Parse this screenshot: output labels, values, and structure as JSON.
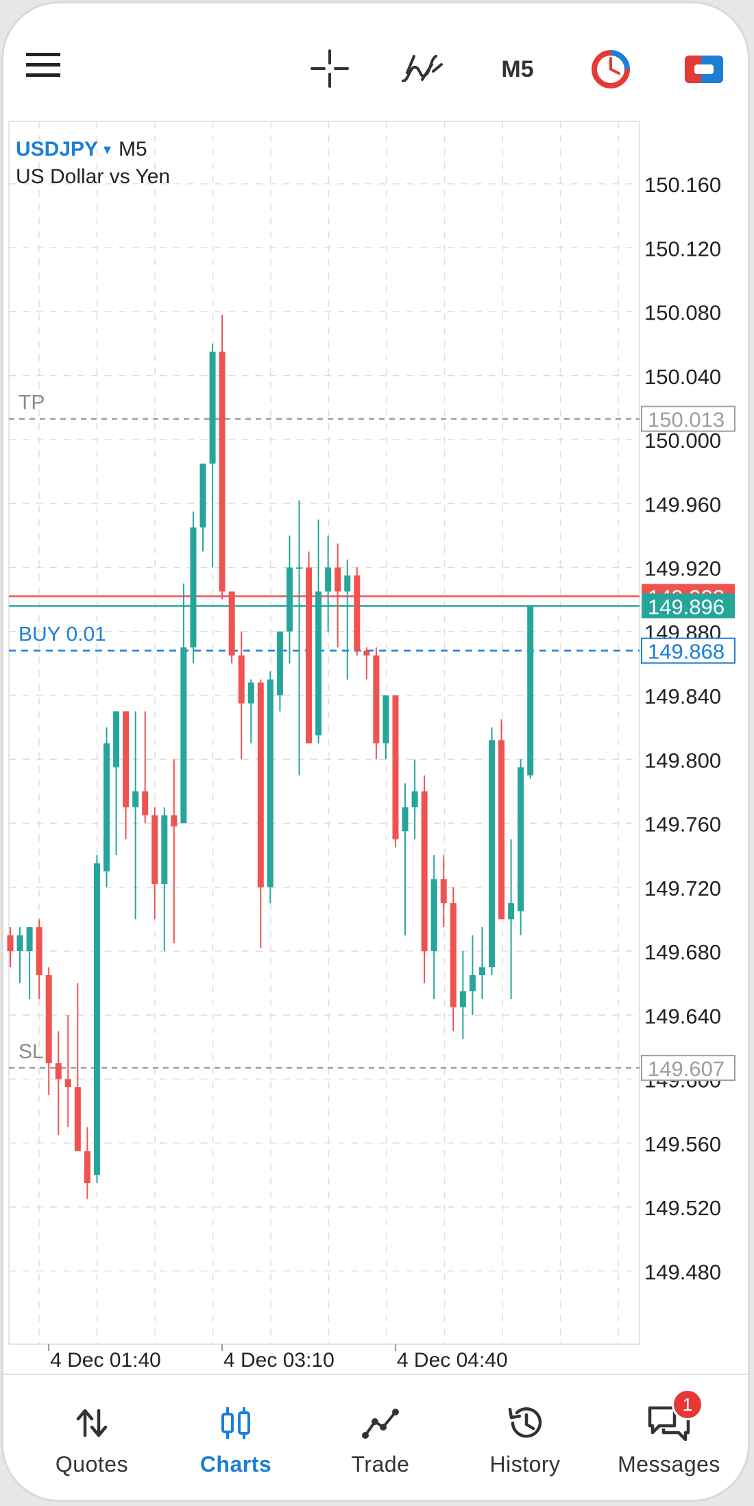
{
  "toolbar": {
    "timeframe_label": "M5"
  },
  "chart": {
    "symbol": "USDJPY",
    "symbol_dropdown_glyph": "▾",
    "timeframe": "M5",
    "description": "US Dollar vs Yen",
    "price_levels": [
      {
        "label": "150.160",
        "price": 150.16
      },
      {
        "label": "150.120",
        "price": 150.12
      },
      {
        "label": "150.080",
        "price": 150.08
      },
      {
        "label": "150.040",
        "price": 150.04
      },
      {
        "label": "150.000",
        "price": 150.0
      },
      {
        "label": "149.960",
        "price": 149.96
      },
      {
        "label": "149.920",
        "price": 149.92
      },
      {
        "label": "149.880",
        "price": 149.88
      },
      {
        "label": "149.840",
        "price": 149.84
      },
      {
        "label": "149.800",
        "price": 149.8
      },
      {
        "label": "149.760",
        "price": 149.76
      },
      {
        "label": "149.720",
        "price": 149.72
      },
      {
        "label": "149.680",
        "price": 149.68
      },
      {
        "label": "149.640",
        "price": 149.64
      },
      {
        "label": "149.600",
        "price": 149.6
      },
      {
        "label": "149.560",
        "price": 149.56
      },
      {
        "label": "149.520",
        "price": 149.52
      },
      {
        "label": "149.480",
        "price": 149.48
      }
    ],
    "time_labels": [
      {
        "label": "4 Dec 01:40",
        "bar_index": 2
      },
      {
        "label": "4 Dec 03:10",
        "bar_index": 20
      },
      {
        "label": "4 Dec 04:40",
        "bar_index": 38
      }
    ],
    "tp_line": {
      "label": "TP",
      "price": 150.013,
      "price_label": "150.013"
    },
    "sl_line": {
      "label": "SL",
      "price": 149.607,
      "price_label": "149.607"
    },
    "position_line": {
      "label": "BUY 0.01",
      "price": 149.868,
      "price_label": "149.868"
    },
    "bid_line": {
      "price": 149.896,
      "price_label": "149.896"
    },
    "ask_line": {
      "price": 149.902,
      "price_label": "149.902"
    },
    "colors": {
      "bull": "#26a69a",
      "bear": "#ef5350",
      "grid": "#dddddd",
      "position": "#1c7ed6",
      "tp_sl": "#9e9e9e",
      "accent": "#1c7ed6"
    }
  },
  "chart_data": {
    "type": "candlestick",
    "symbol": "USDJPY",
    "timeframe": "M5",
    "y_axis_range": [
      149.44,
      150.18
    ],
    "bars": [
      {
        "o": 149.69,
        "h": 149.695,
        "l": 149.67,
        "c": 149.68
      },
      {
        "o": 149.68,
        "h": 149.695,
        "l": 149.66,
        "c": 149.69
      },
      {
        "o": 149.68,
        "h": 149.695,
        "l": 149.65,
        "c": 149.695
      },
      {
        "o": 149.695,
        "h": 149.7,
        "l": 149.65,
        "c": 149.665
      },
      {
        "o": 149.665,
        "h": 149.67,
        "l": 149.59,
        "c": 149.61
      },
      {
        "o": 149.61,
        "h": 149.63,
        "l": 149.565,
        "c": 149.6
      },
      {
        "o": 149.6,
        "h": 149.64,
        "l": 149.57,
        "c": 149.595
      },
      {
        "o": 149.595,
        "h": 149.66,
        "l": 149.555,
        "c": 149.555
      },
      {
        "o": 149.555,
        "h": 149.57,
        "l": 149.525,
        "c": 149.535
      },
      {
        "o": 149.54,
        "h": 149.74,
        "l": 149.535,
        "c": 149.735
      },
      {
        "o": 149.73,
        "h": 149.82,
        "l": 149.72,
        "c": 149.81
      },
      {
        "o": 149.795,
        "h": 149.83,
        "l": 149.74,
        "c": 149.83
      },
      {
        "o": 149.83,
        "h": 149.83,
        "l": 149.75,
        "c": 149.77
      },
      {
        "o": 149.77,
        "h": 149.83,
        "l": 149.7,
        "c": 149.78
      },
      {
        "o": 149.78,
        "h": 149.83,
        "l": 149.76,
        "c": 149.765
      },
      {
        "o": 149.765,
        "h": 149.77,
        "l": 149.7,
        "c": 149.722
      },
      {
        "o": 149.722,
        "h": 149.77,
        "l": 149.68,
        "c": 149.765
      },
      {
        "o": 149.765,
        "h": 149.8,
        "l": 149.685,
        "c": 149.758
      },
      {
        "o": 149.76,
        "h": 149.91,
        "l": 149.76,
        "c": 149.87
      },
      {
        "o": 149.87,
        "h": 149.955,
        "l": 149.86,
        "c": 149.945
      },
      {
        "o": 149.945,
        "h": 149.985,
        "l": 149.93,
        "c": 149.985
      },
      {
        "o": 149.985,
        "h": 150.06,
        "l": 149.92,
        "c": 150.055
      },
      {
        "o": 150.055,
        "h": 150.078,
        "l": 149.9,
        "c": 149.905
      },
      {
        "o": 149.905,
        "h": 149.9,
        "l": 149.86,
        "c": 149.865
      },
      {
        "o": 149.865,
        "h": 149.88,
        "l": 149.8,
        "c": 149.835
      },
      {
        "o": 149.835,
        "h": 149.85,
        "l": 149.81,
        "c": 149.848
      },
      {
        "o": 149.848,
        "h": 149.85,
        "l": 149.682,
        "c": 149.72
      },
      {
        "o": 149.72,
        "h": 149.855,
        "l": 149.71,
        "c": 149.85
      },
      {
        "o": 149.84,
        "h": 149.88,
        "l": 149.83,
        "c": 149.88
      },
      {
        "o": 149.88,
        "h": 149.94,
        "l": 149.86,
        "c": 149.92
      },
      {
        "o": 149.92,
        "h": 149.962,
        "l": 149.79,
        "c": 149.92
      },
      {
        "o": 149.92,
        "h": 149.93,
        "l": 149.81,
        "c": 149.81
      },
      {
        "o": 149.815,
        "h": 149.95,
        "l": 149.81,
        "c": 149.905
      },
      {
        "o": 149.905,
        "h": 149.94,
        "l": 149.88,
        "c": 149.92
      },
      {
        "o": 149.92,
        "h": 149.935,
        "l": 149.87,
        "c": 149.905
      },
      {
        "o": 149.905,
        "h": 149.925,
        "l": 149.85,
        "c": 149.915
      },
      {
        "o": 149.915,
        "h": 149.92,
        "l": 149.865,
        "c": 149.868
      },
      {
        "o": 149.868,
        "h": 149.87,
        "l": 149.85,
        "c": 149.865
      },
      {
        "o": 149.865,
        "h": 149.87,
        "l": 149.8,
        "c": 149.81
      },
      {
        "o": 149.81,
        "h": 149.84,
        "l": 149.8,
        "c": 149.84
      },
      {
        "o": 149.84,
        "h": 149.84,
        "l": 149.745,
        "c": 149.75
      },
      {
        "o": 149.755,
        "h": 149.785,
        "l": 149.69,
        "c": 149.77
      },
      {
        "o": 149.77,
        "h": 149.8,
        "l": 149.75,
        "c": 149.78
      },
      {
        "o": 149.78,
        "h": 149.79,
        "l": 149.66,
        "c": 149.68
      },
      {
        "o": 149.68,
        "h": 149.74,
        "l": 149.65,
        "c": 149.725
      },
      {
        "o": 149.725,
        "h": 149.74,
        "l": 149.695,
        "c": 149.71
      },
      {
        "o": 149.71,
        "h": 149.72,
        "l": 149.63,
        "c": 149.645
      },
      {
        "o": 149.645,
        "h": 149.68,
        "l": 149.625,
        "c": 149.655
      },
      {
        "o": 149.655,
        "h": 149.69,
        "l": 149.64,
        "c": 149.665
      },
      {
        "o": 149.665,
        "h": 149.695,
        "l": 149.65,
        "c": 149.67
      },
      {
        "o": 149.67,
        "h": 149.82,
        "l": 149.665,
        "c": 149.812
      },
      {
        "o": 149.812,
        "h": 149.825,
        "l": 149.7,
        "c": 149.7
      },
      {
        "o": 149.7,
        "h": 149.75,
        "l": 149.65,
        "c": 149.71
      },
      {
        "o": 149.705,
        "h": 149.8,
        "l": 149.69,
        "c": 149.795
      },
      {
        "o": 149.79,
        "h": 149.896,
        "l": 149.788,
        "c": 149.896
      }
    ]
  },
  "nav": {
    "items": [
      {
        "label": "Quotes",
        "active": false
      },
      {
        "label": "Charts",
        "active": true
      },
      {
        "label": "Trade",
        "active": false
      },
      {
        "label": "History",
        "active": false
      },
      {
        "label": "Messages",
        "active": false,
        "badge": "1"
      }
    ]
  }
}
